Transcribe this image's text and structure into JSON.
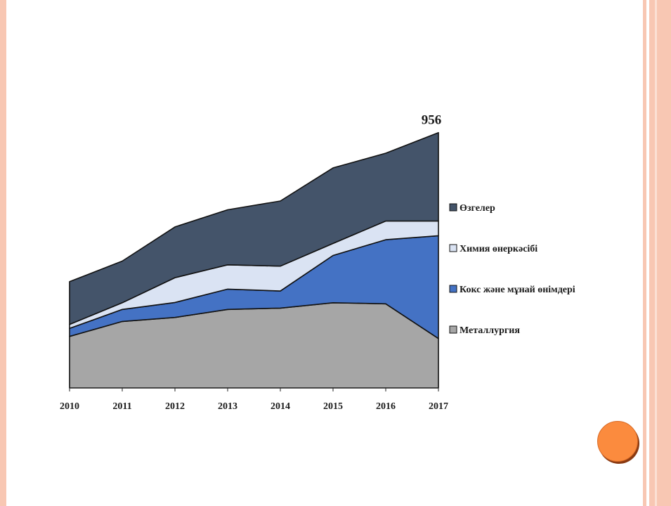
{
  "chart_data": {
    "type": "area",
    "stacked": true,
    "categories": [
      "2010",
      "2011",
      "2012",
      "2013",
      "2014",
      "2015",
      "2016",
      "2017"
    ],
    "ylim": [
      0,
      1000
    ],
    "grid": false,
    "legend_position": "right",
    "annotation": {
      "text": "956",
      "category": "2017"
    },
    "series": [
      {
        "name": "Металлургия",
        "color": "#a6a6a6",
        "values": [
          193,
          249,
          264,
          294,
          299,
          319,
          315,
          185
        ]
      },
      {
        "name": "Кокс және мұнай өнімдері",
        "color": "#4472c4",
        "values": [
          30,
          45,
          56,
          76,
          64,
          177,
          240,
          385
        ]
      },
      {
        "name": "Химия өнеркәсібі",
        "color": "#dae3f3",
        "values": [
          15,
          25,
          93,
          91,
          93,
          45,
          70,
          55
        ]
      },
      {
        "name": "Өзгелер",
        "color": "#44546a",
        "values": [
          160,
          156,
          190,
          206,
          244,
          283,
          254,
          331
        ]
      }
    ]
  }
}
